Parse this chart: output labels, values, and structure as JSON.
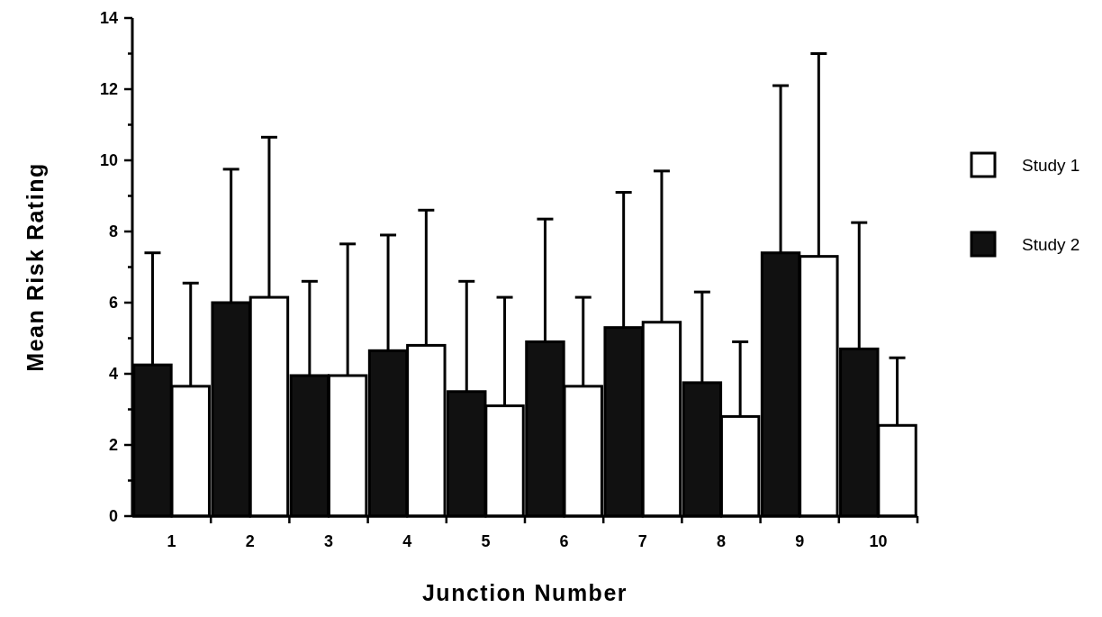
{
  "chart_data": {
    "type": "bar",
    "xlabel": "Junction  Number",
    "ylabel": "Mean  Risk  Rating",
    "categories": [
      "1",
      "2",
      "3",
      "4",
      "5",
      "6",
      "7",
      "8",
      "9",
      "10"
    ],
    "series": [
      {
        "name": "Study 2",
        "color": "#111111",
        "values": [
          4.25,
          6.0,
          3.95,
          4.65,
          3.5,
          4.9,
          5.3,
          3.75,
          7.4,
          4.7
        ],
        "errors": [
          [
            4.25,
            7.4
          ],
          [
            6.0,
            9.75
          ],
          [
            3.95,
            6.6
          ],
          [
            4.65,
            7.9
          ],
          [
            3.5,
            6.6
          ],
          [
            4.9,
            8.35
          ],
          [
            5.3,
            9.1
          ],
          [
            3.75,
            6.3
          ],
          [
            7.4,
            12.1
          ],
          [
            4.7,
            8.25
          ]
        ]
      },
      {
        "name": "Study 1",
        "color": "#ffffff",
        "values": [
          3.65,
          6.15,
          3.95,
          4.8,
          3.1,
          3.65,
          5.45,
          2.8,
          7.3,
          2.55
        ],
        "errors": [
          [
            3.65,
            6.55
          ],
          [
            6.15,
            10.65
          ],
          [
            3.95,
            7.65
          ],
          [
            4.8,
            8.6
          ],
          [
            3.1,
            6.15
          ],
          [
            3.65,
            6.15
          ],
          [
            5.45,
            9.7
          ],
          [
            2.8,
            4.9
          ],
          [
            7.3,
            13.0
          ],
          [
            2.55,
            4.45
          ]
        ]
      }
    ],
    "ylim": [
      0,
      14
    ],
    "yticks": [
      0,
      {
        "value": 1,
        "label": null
      },
      2,
      {
        "value": 3,
        "label": null
      },
      4,
      {
        "value": 5,
        "label": null
      },
      6,
      {
        "value": 7,
        "label": null
      },
      8,
      {
        "value": 9,
        "label": null
      },
      10,
      {
        "value": 11,
        "label": null
      },
      12,
      {
        "value": 13,
        "label": null
      },
      14
    ],
    "legend": "right",
    "grid": false
  }
}
